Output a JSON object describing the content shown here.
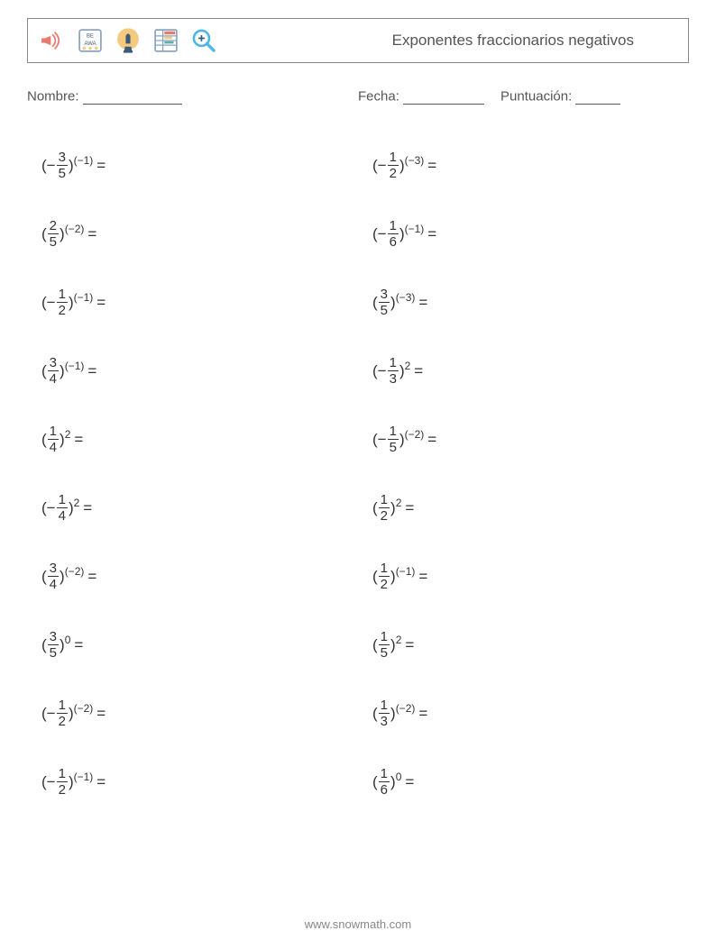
{
  "header": {
    "title": "Exponentes fraccionarios negativos",
    "icons": [
      "megaphone",
      "abacus",
      "chess",
      "spreadsheet",
      "search"
    ]
  },
  "meta": {
    "name_label": "Nombre:",
    "date_label": "Fecha:",
    "score_label": "Puntuación:",
    "name_line_width": 110,
    "date_line_width": 90,
    "score_line_width": 50
  },
  "colors": {
    "text": "#333333",
    "muted": "#555555",
    "footer": "#888888",
    "border": "#888888",
    "icon_red": "#e8796b",
    "icon_yellow": "#f3ca7e",
    "icon_frame": "#89a3c1",
    "icon_teal": "#5cb1a3",
    "icon_blue": "#4db5e8",
    "icon_dark": "#3a5a78"
  },
  "problems_left": [
    {
      "neg": true,
      "num": "3",
      "den": "5",
      "exp": "(−1)"
    },
    {
      "neg": false,
      "num": "2",
      "den": "5",
      "exp": "(−2)"
    },
    {
      "neg": true,
      "num": "1",
      "den": "2",
      "exp": "(−1)"
    },
    {
      "neg": false,
      "num": "3",
      "den": "4",
      "exp": "(−1)"
    },
    {
      "neg": false,
      "num": "1",
      "den": "4",
      "exp": "2"
    },
    {
      "neg": true,
      "num": "1",
      "den": "4",
      "exp": "2"
    },
    {
      "neg": false,
      "num": "3",
      "den": "4",
      "exp": "(−2)"
    },
    {
      "neg": false,
      "num": "3",
      "den": "5",
      "exp": "0"
    },
    {
      "neg": true,
      "num": "1",
      "den": "2",
      "exp": "(−2)"
    },
    {
      "neg": true,
      "num": "1",
      "den": "2",
      "exp": "(−1)"
    }
  ],
  "problems_right": [
    {
      "neg": true,
      "num": "1",
      "den": "2",
      "exp": "(−3)"
    },
    {
      "neg": true,
      "num": "1",
      "den": "6",
      "exp": "(−1)"
    },
    {
      "neg": false,
      "num": "3",
      "den": "5",
      "exp": "(−3)"
    },
    {
      "neg": true,
      "num": "1",
      "den": "3",
      "exp": "2"
    },
    {
      "neg": true,
      "num": "1",
      "den": "5",
      "exp": "(−2)"
    },
    {
      "neg": false,
      "num": "1",
      "den": "2",
      "exp": "2"
    },
    {
      "neg": false,
      "num": "1",
      "den": "2",
      "exp": "(−1)"
    },
    {
      "neg": false,
      "num": "1",
      "den": "5",
      "exp": "2"
    },
    {
      "neg": false,
      "num": "1",
      "den": "3",
      "exp": "(−2)"
    },
    {
      "neg": false,
      "num": "1",
      "den": "6",
      "exp": "0"
    }
  ],
  "footer": "www.snowmath.com"
}
